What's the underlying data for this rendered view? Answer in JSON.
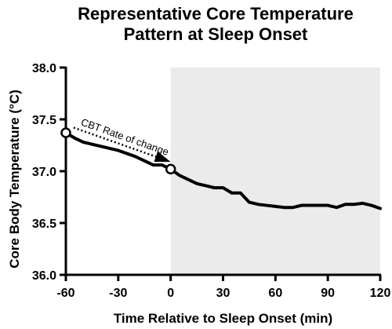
{
  "chart_data": {
    "type": "line",
    "title_lines": [
      "Representative Core Temperature",
      "Pattern at Sleep Onset"
    ],
    "xlabel": "Time Relative to Sleep Onset (min)",
    "ylabel": "Core Body Temperature (°C)",
    "xlim": [
      -60,
      120
    ],
    "ylim": [
      36.0,
      38.0
    ],
    "x_ticks": [
      -60,
      -30,
      0,
      30,
      60,
      90,
      120
    ],
    "x_tick_labels": [
      "-60",
      "-30",
      "0",
      "30",
      "60",
      "90",
      "120"
    ],
    "y_ticks": [
      36.0,
      36.5,
      37.0,
      37.5,
      38.0
    ],
    "y_tick_labels": [
      "36.0",
      "36.5",
      "37.0",
      "37.5",
      "38.0"
    ],
    "grid": false,
    "shaded_region": {
      "x": [
        0,
        120
      ],
      "color": "#ebebeb"
    },
    "series": [
      {
        "color": "#000000",
        "x": [
          -60,
          -55,
          -50,
          -45,
          -40,
          -35,
          -30,
          -25,
          -20,
          -15,
          -10,
          -5,
          0,
          5,
          10,
          15,
          20,
          25,
          30,
          35,
          40,
          45,
          50,
          55,
          60,
          65,
          70,
          75,
          80,
          85,
          90,
          95,
          100,
          105,
          110,
          115,
          120
        ],
        "y": [
          37.37,
          37.32,
          37.28,
          37.26,
          37.24,
          37.22,
          37.2,
          37.17,
          37.14,
          37.1,
          37.06,
          37.06,
          37.02,
          36.96,
          36.92,
          36.88,
          36.86,
          36.84,
          36.84,
          36.79,
          36.79,
          36.7,
          36.68,
          36.67,
          36.66,
          36.65,
          36.65,
          36.67,
          36.67,
          36.67,
          36.67,
          36.65,
          36.68,
          36.68,
          36.69,
          36.67,
          36.64
        ]
      }
    ],
    "markers": [
      {
        "x": -60,
        "y": 37.37,
        "style": "open-circle"
      },
      {
        "x": 0,
        "y": 37.02,
        "style": "open-circle"
      }
    ],
    "annotations": [
      {
        "text": "CBT Rate of change",
        "from": [
          -60,
          37.42
        ],
        "to": [
          0,
          37.09
        ],
        "style": "dotted-arrow"
      }
    ]
  }
}
